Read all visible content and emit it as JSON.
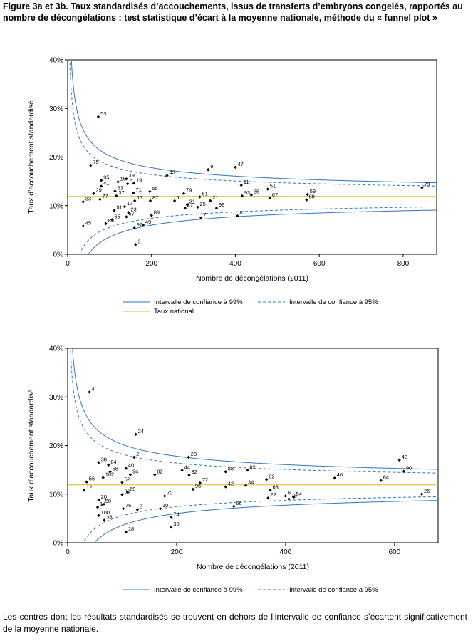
{
  "figure_title": "Figure 3a et 3b. Taux standardisés d’accouchements, issus de transferts d’embryons congelés, rapportés au nombre de décongélations : test statistique d’écart à la moyenne nationale, méthode du « funnel plot »",
  "footnote": "Les centres dont les résultats standardisés se trouvent en dehors de l’intervalle de confiance s’écartent significativement de la moyenne nationale.",
  "colors": {
    "ci": "#2e75c7",
    "national": "#e8c547",
    "points": "#000000",
    "axis": "#000000"
  },
  "chart_data": [
    {
      "type": "scatter",
      "xlabel": "Nombre de décongélations (2011)",
      "ylabel": "Taux d’accouchement standardisé",
      "xlim": [
        0,
        880
      ],
      "ylim": [
        0,
        40
      ],
      "xticks": [
        0,
        200,
        400,
        600,
        800
      ],
      "yticks": [
        0,
        10,
        20,
        30,
        40
      ],
      "xtick_labels": [
        "0",
        "200",
        "400",
        "600",
        "800"
      ],
      "ytick_labels": [
        "0%",
        "10%",
        "20%",
        "30%",
        "40%"
      ],
      "national_rate": 11.9,
      "legend": {
        "ci99": "Intervalle de confiance à 99%",
        "ci95": "Intervalle de confiance à 95%",
        "national": "Taux national"
      },
      "points": [
        {
          "label": "53",
          "x": 73,
          "y": 28.3
        },
        {
          "label": "75",
          "x": 55,
          "y": 18.3
        },
        {
          "label": "95",
          "x": 80,
          "y": 15.2
        },
        {
          "label": "15",
          "x": 120,
          "y": 14.9
        },
        {
          "label": "39",
          "x": 140,
          "y": 15.5
        },
        {
          "label": "41",
          "x": 80,
          "y": 14.0
        },
        {
          "label": "5",
          "x": 143,
          "y": 14.5
        },
        {
          "label": "19",
          "x": 158,
          "y": 14.6
        },
        {
          "label": "63",
          "x": 113,
          "y": 13.0
        },
        {
          "label": "29",
          "x": 62,
          "y": 12.5
        },
        {
          "label": "37",
          "x": 116,
          "y": 12.0
        },
        {
          "label": "71",
          "x": 157,
          "y": 12.6
        },
        {
          "label": "55",
          "x": 196,
          "y": 12.9
        },
        {
          "label": "33",
          "x": 37,
          "y": 10.8
        },
        {
          "label": "77",
          "x": 77,
          "y": 11.3
        },
        {
          "label": "13",
          "x": 160,
          "y": 11.0
        },
        {
          "label": "87",
          "x": 197,
          "y": 11.0
        },
        {
          "label": "17",
          "x": 136,
          "y": 9.8
        },
        {
          "label": "91",
          "x": 111,
          "y": 9.0
        },
        {
          "label": "23",
          "x": 145,
          "y": 8.6
        },
        {
          "label": "89",
          "x": 200,
          "y": 8.0
        },
        {
          "label": "57",
          "x": 140,
          "y": 7.7
        },
        {
          "label": "65",
          "x": 106,
          "y": 7.1
        },
        {
          "label": "83",
          "x": 91,
          "y": 6.3
        },
        {
          "label": "45",
          "x": 37,
          "y": 5.8
        },
        {
          "label": "97",
          "x": 159,
          "y": 5.4
        },
        {
          "label": "49",
          "x": 180,
          "y": 6.0
        },
        {
          "label": "3",
          "x": 162,
          "y": 2.0
        },
        {
          "label": "43",
          "x": 237,
          "y": 16.2
        },
        {
          "label": "79",
          "x": 277,
          "y": 12.5
        },
        {
          "label": "1",
          "x": 255,
          "y": 11.0
        },
        {
          "label": "31",
          "x": 285,
          "y": 10.2
        },
        {
          "label": "27",
          "x": 280,
          "y": 9.5
        },
        {
          "label": "61",
          "x": 315,
          "y": 11.8
        },
        {
          "label": "21",
          "x": 340,
          "y": 11.0
        },
        {
          "label": "25",
          "x": 310,
          "y": 9.7
        },
        {
          "label": "99",
          "x": 355,
          "y": 9.5
        },
        {
          "label": "7",
          "x": 318,
          "y": 7.5
        },
        {
          "label": "9",
          "x": 335,
          "y": 17.4
        },
        {
          "label": "47",
          "x": 400,
          "y": 17.9
        },
        {
          "label": "11",
          "x": 414,
          "y": 14.2
        },
        {
          "label": "93",
          "x": 416,
          "y": 12.0
        },
        {
          "label": "35",
          "x": 438,
          "y": 12.2
        },
        {
          "label": "81",
          "x": 405,
          "y": 7.9
        },
        {
          "label": "51",
          "x": 477,
          "y": 13.4
        },
        {
          "label": "67",
          "x": 482,
          "y": 11.6
        },
        {
          "label": "89",
          "x": 570,
          "y": 11.2
        },
        {
          "label": "59",
          "x": 572,
          "y": 12.3
        },
        {
          "label": "73",
          "x": 845,
          "y": 13.7
        }
      ]
    },
    {
      "type": "scatter",
      "xlabel": "Nombre de décongélations (2011)",
      "ylabel": "Taux d’accouchement standardisé",
      "xlim": [
        0,
        680
      ],
      "ylim": [
        0,
        40
      ],
      "xticks": [
        0,
        200,
        400,
        600
      ],
      "yticks": [
        0,
        10,
        20,
        30,
        40
      ],
      "xtick_labels": [
        "0",
        "200",
        "400",
        "600"
      ],
      "ytick_labels": [
        "0%",
        "10%",
        "20%",
        "30%",
        "40%"
      ],
      "national_rate": 11.9,
      "legend": {
        "ci99": "Intervalle de confiance à 99%",
        "ci95": "Intervalle de confiance à 95%"
      },
      "points": [
        {
          "label": "4",
          "x": 40,
          "y": 31.0
        },
        {
          "label": "24",
          "x": 125,
          "y": 22.3
        },
        {
          "label": "38",
          "x": 57,
          "y": 16.5
        },
        {
          "label": "84",
          "x": 75,
          "y": 16.0
        },
        {
          "label": "2",
          "x": 122,
          "y": 17.6
        },
        {
          "label": "40",
          "x": 107,
          "y": 15.3
        },
        {
          "label": "58",
          "x": 78,
          "y": 14.6
        },
        {
          "label": "94",
          "x": 115,
          "y": 14.0
        },
        {
          "label": "56",
          "x": 35,
          "y": 12.5
        },
        {
          "label": "102",
          "x": 65,
          "y": 13.4
        },
        {
          "label": "52",
          "x": 100,
          "y": 12.4
        },
        {
          "label": "12",
          "x": 30,
          "y": 10.8
        },
        {
          "label": "60",
          "x": 110,
          "y": 10.4
        },
        {
          "label": "80",
          "x": 100,
          "y": 9.9
        },
        {
          "label": "20",
          "x": 57,
          "y": 8.8
        },
        {
          "label": "50",
          "x": 65,
          "y": 7.9
        },
        {
          "label": "14",
          "x": 55,
          "y": 7.3
        },
        {
          "label": "76",
          "x": 102,
          "y": 7.0
        },
        {
          "label": "8",
          "x": 128,
          "y": 6.8
        },
        {
          "label": "100",
          "x": 57,
          "y": 5.6
        },
        {
          "label": "36",
          "x": 67,
          "y": 4.6
        },
        {
          "label": "18",
          "x": 107,
          "y": 2.2
        },
        {
          "label": "82",
          "x": 160,
          "y": 14.0
        },
        {
          "label": "70",
          "x": 178,
          "y": 9.6
        },
        {
          "label": "10",
          "x": 170,
          "y": 7.0
        },
        {
          "label": "74",
          "x": 190,
          "y": 5.2
        },
        {
          "label": "30",
          "x": 190,
          "y": 3.2
        },
        {
          "label": "44",
          "x": 210,
          "y": 14.9
        },
        {
          "label": "32",
          "x": 223,
          "y": 13.9
        },
        {
          "label": "28",
          "x": 222,
          "y": 17.6
        },
        {
          "label": "72",
          "x": 243,
          "y": 12.3
        },
        {
          "label": "96",
          "x": 230,
          "y": 11.0
        },
        {
          "label": "88",
          "x": 290,
          "y": 14.6
        },
        {
          "label": "92",
          "x": 330,
          "y": 14.9
        },
        {
          "label": "42",
          "x": 290,
          "y": 11.5
        },
        {
          "label": "34",
          "x": 327,
          "y": 11.8
        },
        {
          "label": "66",
          "x": 305,
          "y": 7.5
        },
        {
          "label": "62",
          "x": 365,
          "y": 13.0
        },
        {
          "label": "68",
          "x": 372,
          "y": 10.8
        },
        {
          "label": "6",
          "x": 400,
          "y": 9.6
        },
        {
          "label": "54",
          "x": 415,
          "y": 9.4
        },
        {
          "label": "22",
          "x": 368,
          "y": 9.2
        },
        {
          "label": "78",
          "x": 406,
          "y": 9.0
        },
        {
          "label": "46",
          "x": 490,
          "y": 13.3
        },
        {
          "label": "48",
          "x": 609,
          "y": 17.0
        },
        {
          "label": "90",
          "x": 617,
          "y": 14.7
        },
        {
          "label": "64",
          "x": 575,
          "y": 12.8
        },
        {
          "label": "26",
          "x": 650,
          "y": 10.0
        }
      ]
    }
  ]
}
